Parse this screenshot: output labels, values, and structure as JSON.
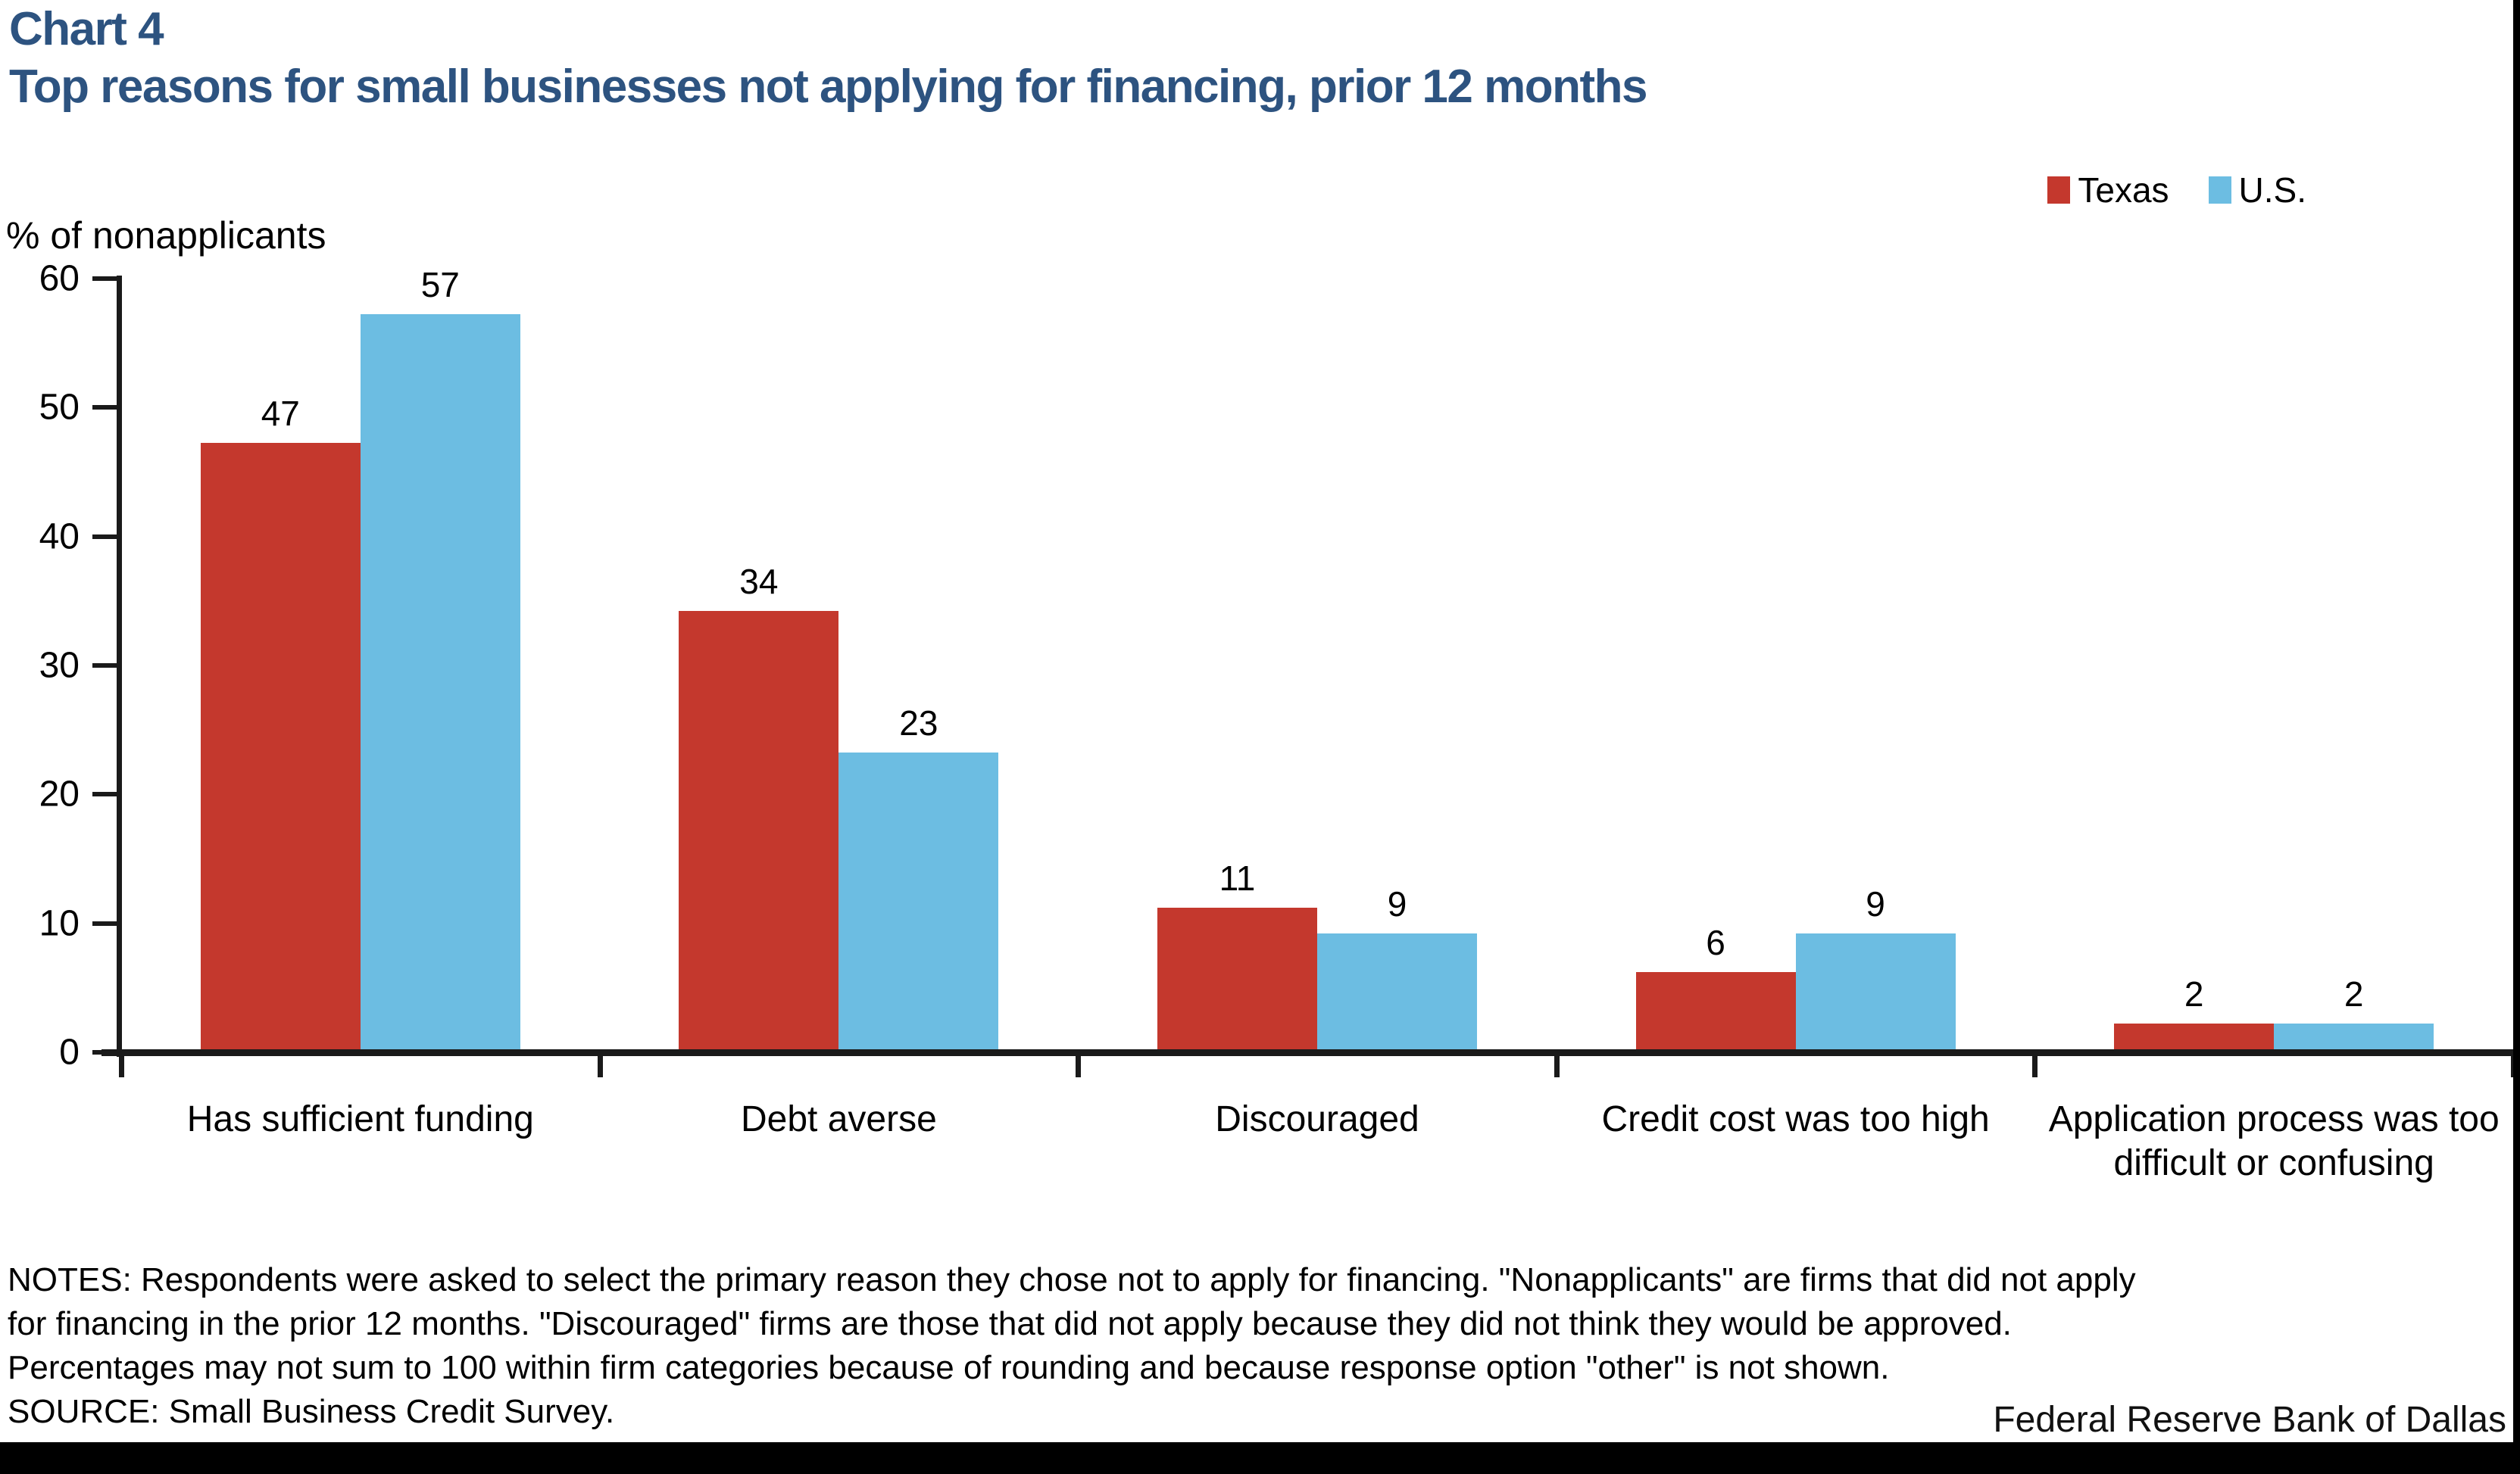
{
  "header": {
    "chart_label": "Chart 4",
    "title": "Top reasons for small businesses not applying for financing, prior 12 months"
  },
  "axis_title": "% of nonapplicants",
  "chart_data": {
    "type": "bar",
    "categories": [
      "Has sufficient funding",
      "Debt averse",
      "Discouraged",
      "Credit cost was too high",
      "Application process was too difficult or confusing"
    ],
    "series": [
      {
        "name": "Texas",
        "color": "#c4382d",
        "values": [
          47,
          34,
          11,
          6,
          2
        ]
      },
      {
        "name": "U.S.",
        "color": "#6cbde2",
        "values": [
          57,
          23,
          9,
          9,
          2
        ]
      }
    ],
    "title": "Top reasons for small businesses not applying for financing, prior 12 months",
    "xlabel": "",
    "ylabel": "% of nonapplicants",
    "ylim": [
      0,
      60
    ],
    "ytick_step": 10,
    "grid": false,
    "legend_position": "top-right",
    "bar_value_labels": true
  },
  "notes": {
    "lines": [
      "NOTES: Respondents were asked to select the primary reason they chose not to apply for financing. \"Nonapplicants\" are firms that did not apply",
      "for financing in the prior 12 months. \"Discouraged\" firms are those that did not apply because they did not think they would be approved.",
      "Percentages may not sum to 100 within firm categories because of rounding and because response option \"other\" is not shown.",
      "SOURCE: Small Business Credit Survey."
    ]
  },
  "footer": {
    "brand": "Federal Reserve Bank of Dallas"
  },
  "colors": {
    "title_blue": "#2d5380",
    "axis_black": "#1a1a1a",
    "texas_red": "#c4382d",
    "us_blue": "#6cbde2"
  }
}
